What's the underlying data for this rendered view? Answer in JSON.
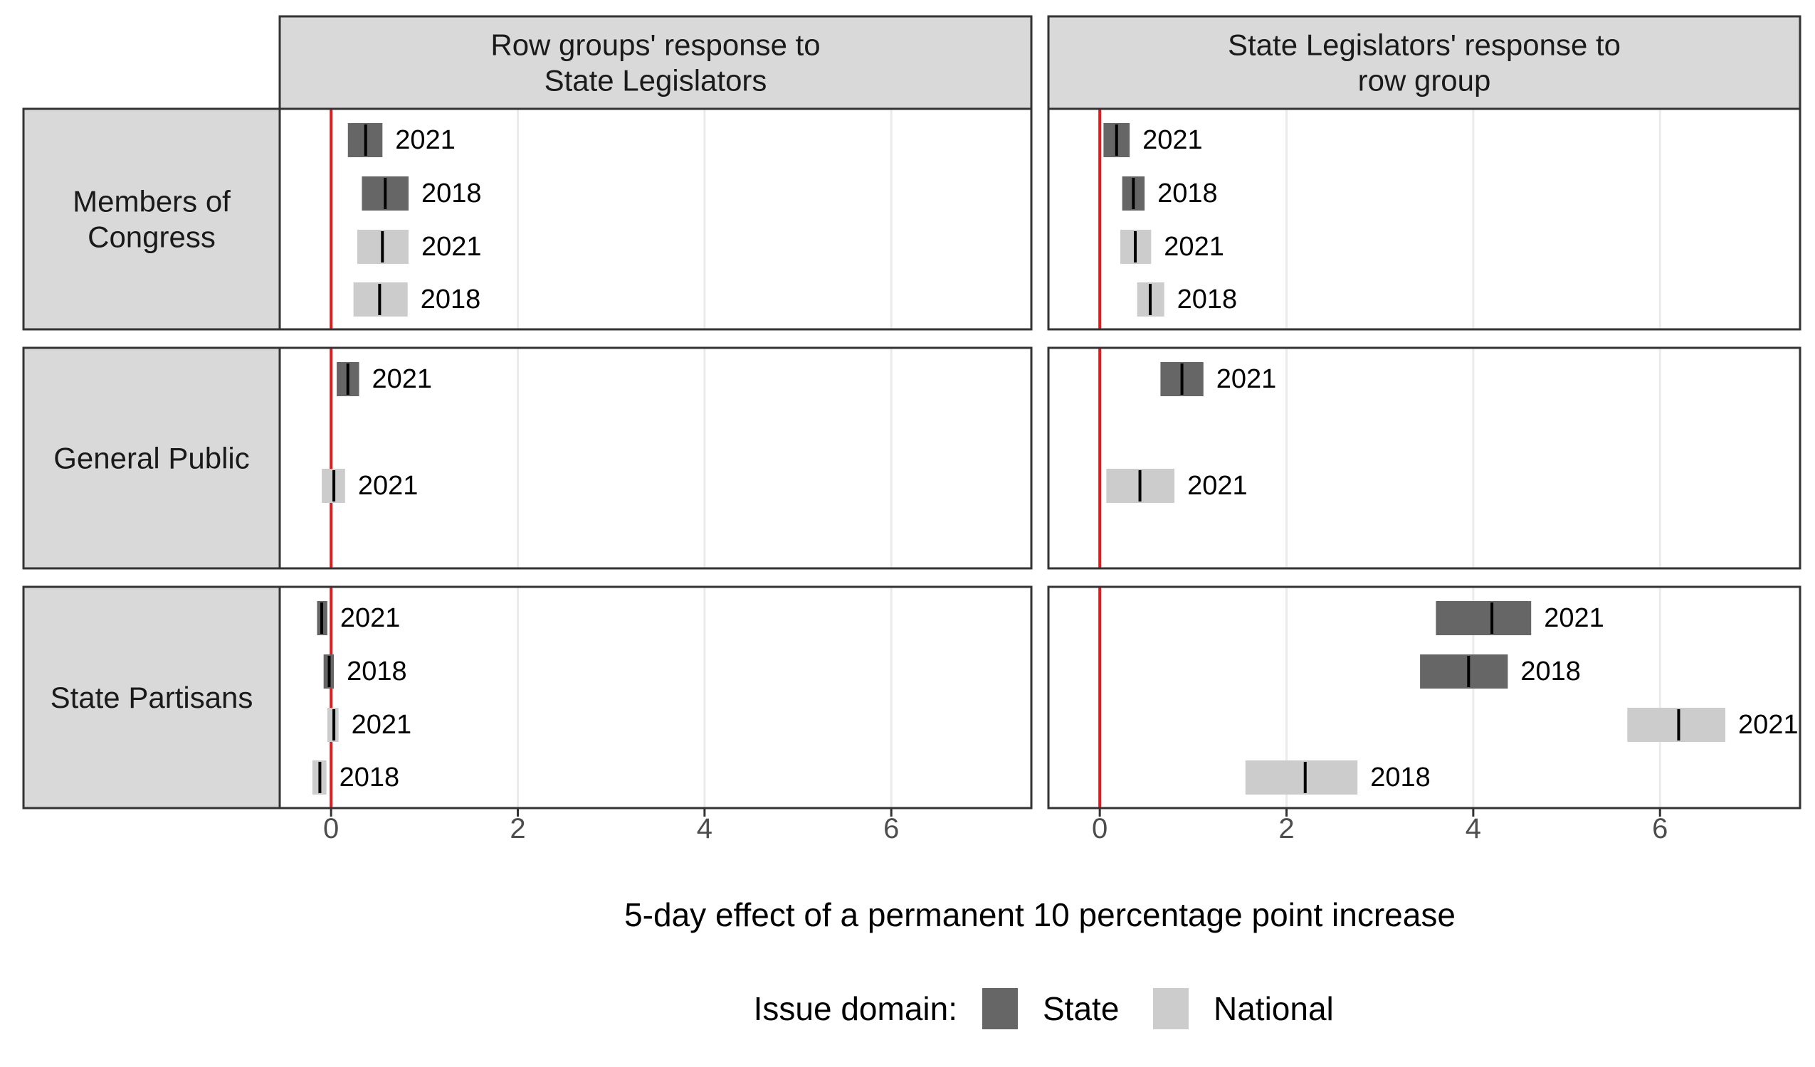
{
  "chart_data": {
    "type": "bar",
    "subtype": "faceted-interval",
    "columns": [
      "Row groups' response to\nState Legislators",
      "State Legislators' response to\nrow group"
    ],
    "rows": [
      "Members of\nCongress",
      "General Public",
      "State Partisans"
    ],
    "xlabel": "5-day effect of a permanent 10 percentage point increase",
    "xlim": [
      -0.55,
      7.5
    ],
    "xticks": [
      0,
      2,
      4,
      6
    ],
    "reference_line": {
      "x": 0,
      "color": "#e41a1c"
    },
    "grid": true,
    "legend": {
      "title": "Issue domain:",
      "position": "bottom",
      "items": [
        {
          "name": "State",
          "color": "#666666"
        },
        {
          "name": "National",
          "color": "#cccccc"
        }
      ]
    },
    "panels": [
      {
        "row": 0,
        "col": 0,
        "bars": [
          {
            "slot": 0,
            "domain": "State",
            "label": "2021",
            "lo": 0.18,
            "hi": 0.55,
            "est": 0.37
          },
          {
            "slot": 1,
            "domain": "State",
            "label": "2018",
            "lo": 0.33,
            "hi": 0.83,
            "est": 0.58
          },
          {
            "slot": 2,
            "domain": "National",
            "label": "2021",
            "lo": 0.28,
            "hi": 0.83,
            "est": 0.55
          },
          {
            "slot": 3,
            "domain": "National",
            "label": "2018",
            "lo": 0.24,
            "hi": 0.82,
            "est": 0.52
          }
        ]
      },
      {
        "row": 0,
        "col": 1,
        "bars": [
          {
            "slot": 0,
            "domain": "State",
            "label": "2021",
            "lo": 0.04,
            "hi": 0.32,
            "est": 0.18
          },
          {
            "slot": 1,
            "domain": "State",
            "label": "2018",
            "lo": 0.24,
            "hi": 0.48,
            "est": 0.36
          },
          {
            "slot": 2,
            "domain": "National",
            "label": "2021",
            "lo": 0.22,
            "hi": 0.55,
            "est": 0.38
          },
          {
            "slot": 3,
            "domain": "National",
            "label": "2018",
            "lo": 0.4,
            "hi": 0.69,
            "est": 0.54
          }
        ]
      },
      {
        "row": 1,
        "col": 0,
        "bars": [
          {
            "slot": 0,
            "domain": "State",
            "label": "2021",
            "lo": 0.06,
            "hi": 0.3,
            "est": 0.18
          },
          {
            "slot": 2,
            "domain": "National",
            "label": "2021",
            "lo": -0.1,
            "hi": 0.15,
            "est": 0.03
          }
        ]
      },
      {
        "row": 1,
        "col": 1,
        "bars": [
          {
            "slot": 0,
            "domain": "State",
            "label": "2021",
            "lo": 0.65,
            "hi": 1.11,
            "est": 0.88
          },
          {
            "slot": 2,
            "domain": "National",
            "label": "2021",
            "lo": 0.07,
            "hi": 0.8,
            "est": 0.43
          }
        ]
      },
      {
        "row": 2,
        "col": 0,
        "bars": [
          {
            "slot": 0,
            "domain": "State",
            "label": "2021",
            "lo": -0.15,
            "hi": -0.04,
            "est": -0.1
          },
          {
            "slot": 1,
            "domain": "State",
            "label": "2018",
            "lo": -0.08,
            "hi": 0.03,
            "est": -0.02
          },
          {
            "slot": 2,
            "domain": "National",
            "label": "2021",
            "lo": -0.04,
            "hi": 0.08,
            "est": 0.03
          },
          {
            "slot": 3,
            "domain": "National",
            "label": "2018",
            "lo": -0.2,
            "hi": -0.05,
            "est": -0.12
          }
        ]
      },
      {
        "row": 2,
        "col": 1,
        "bars": [
          {
            "slot": 0,
            "domain": "State",
            "label": "2021",
            "lo": 3.6,
            "hi": 4.62,
            "est": 4.2
          },
          {
            "slot": 1,
            "domain": "State",
            "label": "2018",
            "lo": 3.43,
            "hi": 4.37,
            "est": 3.95
          },
          {
            "slot": 2,
            "domain": "National",
            "label": "2021",
            "lo": 5.65,
            "hi": 6.7,
            "est": 6.2
          },
          {
            "slot": 3,
            "domain": "National",
            "label": "2018",
            "lo": 1.56,
            "hi": 2.76,
            "est": 2.2
          }
        ]
      }
    ]
  }
}
